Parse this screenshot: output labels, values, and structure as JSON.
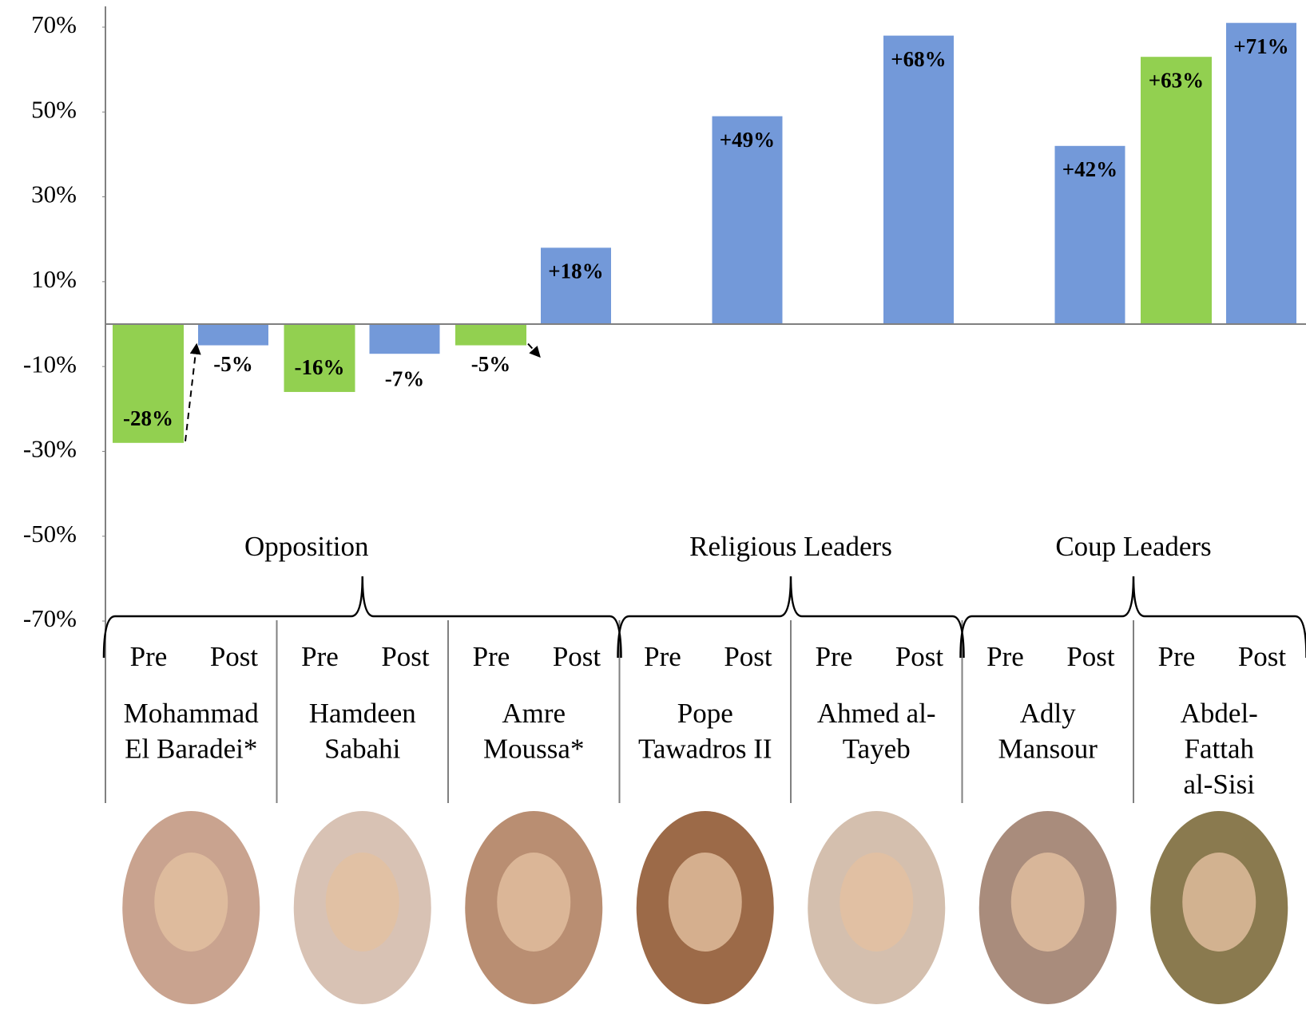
{
  "chart_data": {
    "type": "bar",
    "ylim": [
      -70,
      70
    ],
    "yticks": [
      {
        "value": 70,
        "label": "70%"
      },
      {
        "value": 50,
        "label": "50%"
      },
      {
        "value": 30,
        "label": "30%"
      },
      {
        "value": 10,
        "label": "10%"
      },
      {
        "value": -10,
        "label": "-10%"
      },
      {
        "value": -30,
        "label": "-30%"
      },
      {
        "value": -50,
        "label": "-50%"
      },
      {
        "value": -70,
        "label": "-70%"
      }
    ],
    "groups": [
      {
        "label": "Opposition",
        "categories": [
          [
            "Mohammad",
            "El Baradei*"
          ],
          [
            "Hamdeen",
            "Sabahi"
          ],
          [
            "Amre",
            "Moussa*"
          ]
        ]
      },
      {
        "label": "Religious Leaders",
        "categories": [
          [
            "Pope",
            "Tawadros II"
          ],
          [
            "Ahmed al-",
            "Tayeb"
          ]
        ]
      },
      {
        "label": "Coup Leaders",
        "categories": [
          [
            "Adly",
            "Mansour"
          ],
          [
            "Abdel-",
            "Fattah",
            "al-Sisi"
          ]
        ]
      }
    ],
    "series": [
      {
        "name": "Pre",
        "color": "#92d050",
        "values": [
          -28,
          -16,
          -5,
          null,
          null,
          null,
          63
        ],
        "value_labels": [
          "-28%",
          "-16%",
          "-5%",
          null,
          null,
          null,
          "+63%"
        ]
      },
      {
        "name": "Post",
        "color": "#7399d9",
        "values": [
          -5,
          -7,
          18,
          49,
          68,
          42,
          71
        ],
        "value_labels": [
          "-5%",
          "-7%",
          "+18%",
          "+49%",
          "+68%",
          "+42%",
          "+71%"
        ]
      }
    ]
  }
}
